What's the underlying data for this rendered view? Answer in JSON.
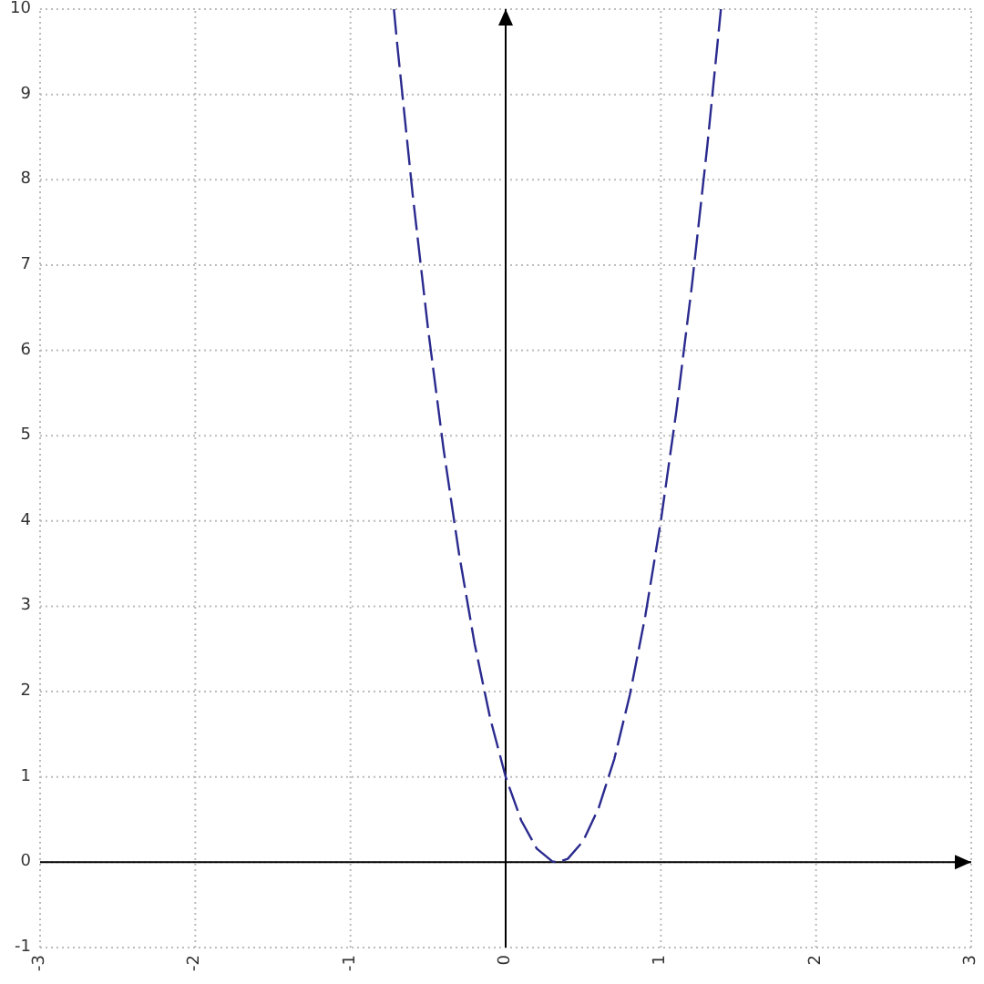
{
  "chart_data": {
    "type": "line",
    "x": [
      -0.72,
      -0.7,
      -0.6,
      -0.5,
      -0.4,
      -0.3,
      -0.2,
      -0.1,
      0,
      0.1,
      0.2,
      0.3,
      0.333,
      0.4,
      0.5,
      0.6,
      0.7,
      0.8,
      0.9,
      1.0,
      1.1,
      1.2,
      1.3,
      1.387
    ],
    "series": [
      {
        "color": "#2a2a8f",
        "values": [
          10,
          9.61,
          7.84,
          6.25,
          4.84,
          3.61,
          2.56,
          1.69,
          1,
          0.49,
          0.16,
          0.01,
          0,
          0.04,
          0.25,
          0.64,
          1.21,
          1.96,
          2.89,
          4,
          5.29,
          6.76,
          8.41,
          10
        ]
      }
    ],
    "xlim": [
      -3,
      3
    ],
    "ylim": [
      -1,
      10
    ],
    "xticks": [
      -3,
      -2,
      -1,
      0,
      1,
      2,
      3
    ],
    "yticks": [
      -1,
      0,
      1,
      2,
      3,
      4,
      5,
      6,
      7,
      8,
      9,
      10
    ],
    "grid": true,
    "line_style": "dashed",
    "marker": "none"
  }
}
